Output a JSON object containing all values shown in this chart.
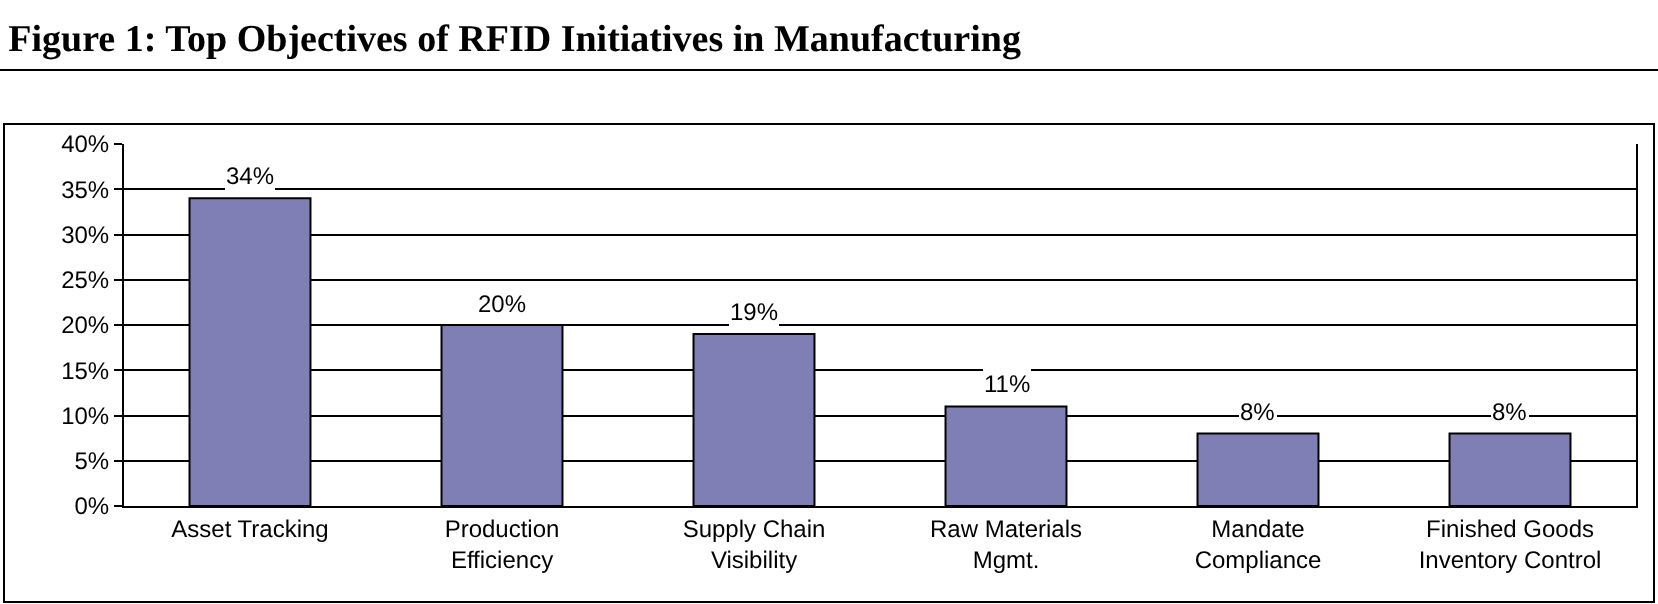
{
  "chart_data": {
    "type": "bar",
    "title": "Figure 1: Top Objectives of RFID Initiatives in Manufacturing",
    "categories": [
      "Asset Tracking",
      "Production\nEfficiency",
      "Supply Chain\nVisibility",
      "Raw Materials\nMgmt.",
      "Mandate\nCompliance",
      "Finished Goods\nInventory Control"
    ],
    "values": [
      34,
      20,
      19,
      11,
      8,
      8
    ],
    "value_labels": [
      "34%",
      "20%",
      "19%",
      "11%",
      "8%",
      "8%"
    ],
    "color": "#7f7fb5",
    "ylim": [
      0,
      40
    ],
    "yticks": [
      {
        "value": 0,
        "label": "0%"
      },
      {
        "value": 5,
        "label": "5%"
      },
      {
        "value": 10,
        "label": "10%"
      },
      {
        "value": 15,
        "label": "15%"
      },
      {
        "value": 20,
        "label": "20%"
      },
      {
        "value": 25,
        "label": "25%"
      },
      {
        "value": 30,
        "label": "30%"
      },
      {
        "value": 35,
        "label": "35%"
      },
      {
        "value": 40,
        "label": "40%"
      }
    ],
    "grid": "y",
    "legend": false
  }
}
